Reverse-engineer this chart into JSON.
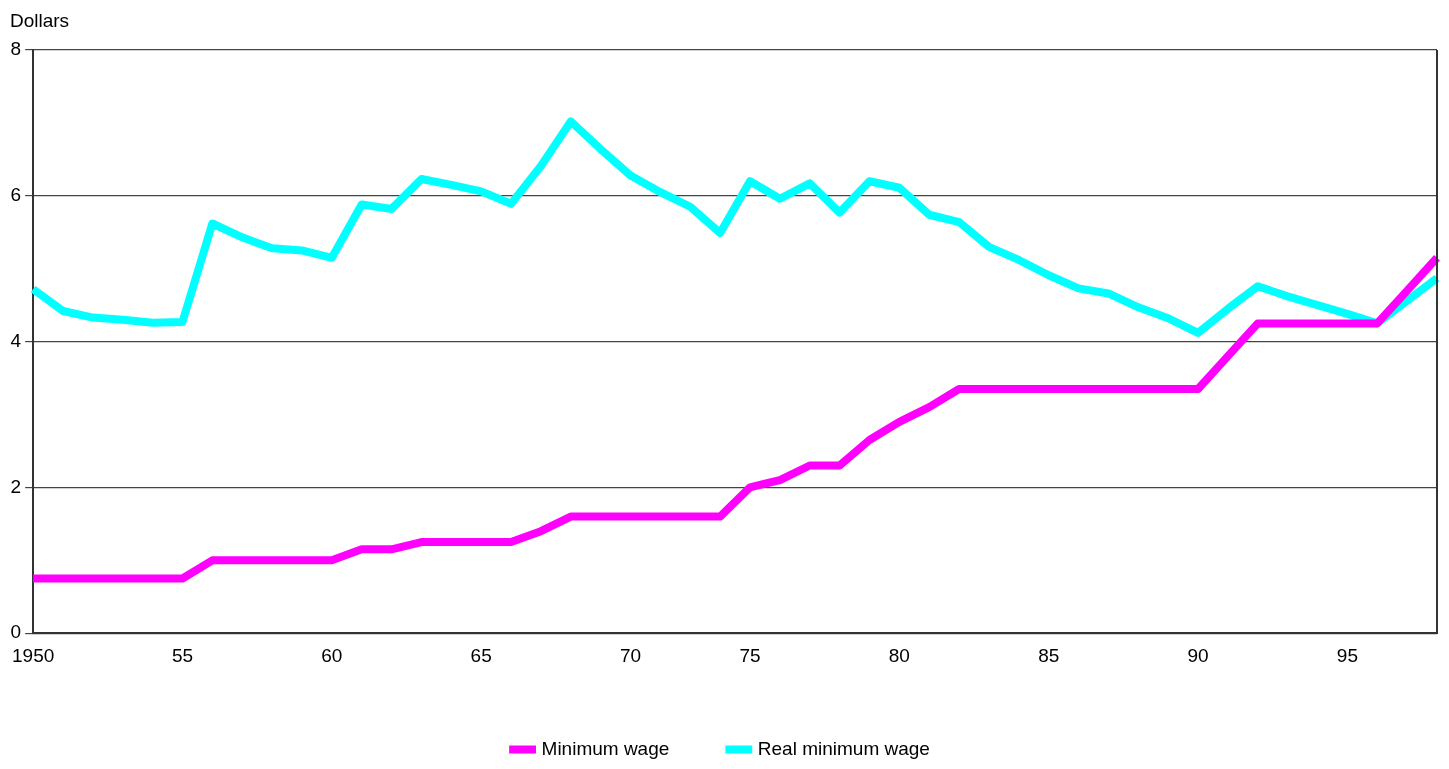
{
  "chart_data": {
    "type": "line",
    "ylabel": "Dollars",
    "categories": [
      "1950",
      null,
      null,
      null,
      null,
      "55",
      null,
      null,
      null,
      null,
      "60",
      null,
      null,
      null,
      null,
      "65",
      null,
      null,
      null,
      null,
      "70",
      null,
      null,
      null,
      "75",
      null,
      null,
      null,
      null,
      "80",
      null,
      null,
      null,
      null,
      "85",
      null,
      null,
      null,
      null,
      "90",
      null,
      null,
      null,
      null,
      "95",
      null,
      null,
      null
    ],
    "series": [
      {
        "name": "Minimum wage",
        "color": "#ff00ff",
        "values": [
          0.75,
          0.75,
          0.75,
          0.75,
          0.75,
          0.75,
          1.0,
          1.0,
          1.0,
          1.0,
          1.0,
          1.15,
          1.15,
          1.25,
          1.25,
          1.25,
          1.25,
          1.4,
          1.6,
          1.6,
          1.6,
          1.6,
          1.6,
          1.6,
          2.0,
          2.1,
          2.3,
          2.3,
          2.65,
          2.9,
          3.1,
          3.35,
          3.35,
          3.35,
          3.35,
          3.35,
          3.35,
          3.35,
          3.35,
          3.35,
          3.8,
          4.25,
          4.25,
          4.25,
          4.25,
          4.25,
          4.7,
          5.15
        ]
      },
      {
        "name": "Real minimum wage",
        "color": "#00ffff",
        "values": [
          4.72,
          4.42,
          4.33,
          4.3,
          4.26,
          4.27,
          5.62,
          5.43,
          5.28,
          5.25,
          5.15,
          5.88,
          5.82,
          6.23,
          6.15,
          6.06,
          5.89,
          6.41,
          7.02,
          6.64,
          6.28,
          6.05,
          5.85,
          5.49,
          6.2,
          5.96,
          6.17,
          5.77,
          6.2,
          6.11,
          5.74,
          5.64,
          5.3,
          5.12,
          4.91,
          4.73,
          4.66,
          4.47,
          4.32,
          4.12,
          4.45,
          4.76,
          4.62,
          4.5,
          4.38,
          4.25,
          4.56,
          4.87
        ]
      }
    ],
    "ylim": [
      0,
      8
    ],
    "yticks": [
      0,
      2,
      4,
      6,
      8
    ],
    "grid": "y",
    "legend": "bottom",
    "marker": "none",
    "line_style": "solid"
  }
}
